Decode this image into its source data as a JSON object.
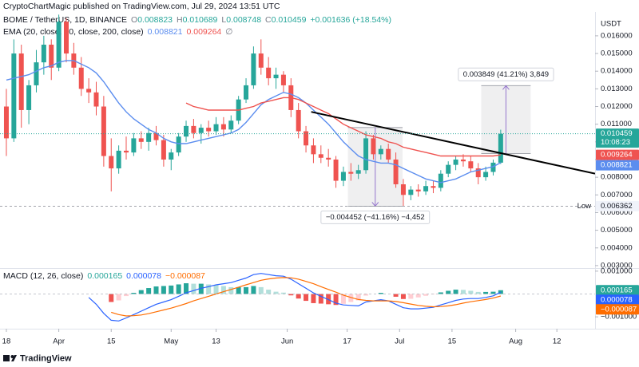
{
  "header": {
    "publisher": "CryptoChartMagic published on TradingView.com, Jul 29, 2024 13:51 UTC"
  },
  "footer": {
    "brand": "TradingView"
  },
  "chart_data": [
    {
      "type": "candlestick",
      "title": "BOME / TetherUS, 1D, BINANCE",
      "ohlc_labels": [
        "O",
        "H",
        "L",
        "C"
      ],
      "change": "+0.001636 (+18.54%)",
      "indicator": "EMA (20, close, 50, close, 200, close)",
      "indicator_missing": "∅",
      "currency": "USDT",
      "countdown": "10:08:23",
      "low_label": "Low",
      "up_color": "#26a69a",
      "down_color": "#ef5350",
      "open": [
        0.012,
        0.0102,
        0.015,
        0.0118,
        0.0132,
        0.0145,
        0.0155,
        0.0142,
        0.0168,
        0.015,
        0.0142,
        0.013,
        0.0128,
        0.012,
        0.0092,
        0.0085,
        0.0095,
        0.0094,
        0.0102,
        0.01,
        0.0105,
        0.0101,
        0.009,
        0.0094,
        0.0103,
        0.0109,
        0.0105,
        0.0108,
        0.0106,
        0.011,
        0.0107,
        0.0112,
        0.0124,
        0.0132,
        0.015,
        0.0142,
        0.0136,
        0.0138,
        0.0132,
        0.0118,
        0.0106,
        0.0098,
        0.0093,
        0.0091,
        0.009,
        0.0078,
        0.0083,
        0.0082,
        0.0084,
        0.0102,
        0.0093,
        0.0096,
        0.009,
        0.0076,
        0.007,
        0.0073,
        0.0072,
        0.0075,
        0.0074,
        0.0082,
        0.0087,
        0.009,
        0.0089,
        0.0085,
        0.008,
        0.0083,
        0.008823
      ],
      "high": [
        0.013,
        0.0158,
        0.0155,
        0.0135,
        0.0152,
        0.016,
        0.0158,
        0.0172,
        0.017,
        0.0156,
        0.0148,
        0.0136,
        0.0134,
        0.0126,
        0.0102,
        0.0098,
        0.0103,
        0.0105,
        0.0106,
        0.0108,
        0.0109,
        0.0104,
        0.0096,
        0.0105,
        0.0112,
        0.0113,
        0.011,
        0.0112,
        0.0114,
        0.0114,
        0.0115,
        0.0126,
        0.0136,
        0.0154,
        0.0158,
        0.0148,
        0.0142,
        0.014,
        0.0136,
        0.0122,
        0.0109,
        0.0102,
        0.0098,
        0.0096,
        0.0092,
        0.0086,
        0.0088,
        0.0087,
        0.0106,
        0.0104,
        0.0098,
        0.0099,
        0.0094,
        0.0079,
        0.0075,
        0.0076,
        0.0078,
        0.0078,
        0.0084,
        0.0089,
        0.0092,
        0.0093,
        0.0092,
        0.0088,
        0.0086,
        0.009,
        0.010689
      ],
      "low": [
        0.0092,
        0.01,
        0.0108,
        0.011,
        0.0128,
        0.0138,
        0.0135,
        0.014,
        0.0145,
        0.0138,
        0.0126,
        0.0122,
        0.0115,
        0.0086,
        0.0072,
        0.0082,
        0.009,
        0.0092,
        0.0096,
        0.0095,
        0.0098,
        0.0086,
        0.0084,
        0.0092,
        0.01,
        0.0102,
        0.0099,
        0.0103,
        0.0104,
        0.0103,
        0.0105,
        0.011,
        0.0122,
        0.013,
        0.0138,
        0.0132,
        0.013,
        0.0128,
        0.0114,
        0.0102,
        0.0094,
        0.0088,
        0.0088,
        0.0086,
        0.0074,
        0.0075,
        0.0078,
        0.0079,
        0.0082,
        0.009,
        0.009,
        0.0088,
        0.0074,
        0.006362,
        0.0067,
        0.0069,
        0.007,
        0.0071,
        0.0072,
        0.008,
        0.0084,
        0.0086,
        0.0083,
        0.0076,
        0.0078,
        0.0081,
        0.008748
      ],
      "close": [
        0.0102,
        0.015,
        0.0118,
        0.0132,
        0.0145,
        0.0155,
        0.0142,
        0.0168,
        0.015,
        0.0142,
        0.013,
        0.0128,
        0.012,
        0.0092,
        0.0085,
        0.0095,
        0.0094,
        0.0102,
        0.01,
        0.0105,
        0.0101,
        0.009,
        0.0094,
        0.0103,
        0.0109,
        0.0105,
        0.0108,
        0.0106,
        0.011,
        0.0107,
        0.0112,
        0.0124,
        0.0132,
        0.015,
        0.0142,
        0.0136,
        0.0138,
        0.0132,
        0.0118,
        0.0106,
        0.0098,
        0.0093,
        0.0091,
        0.009,
        0.0078,
        0.0083,
        0.0082,
        0.0084,
        0.0102,
        0.0093,
        0.0096,
        0.009,
        0.0076,
        0.007,
        0.0073,
        0.0072,
        0.0075,
        0.0074,
        0.0082,
        0.0087,
        0.009,
        0.0089,
        0.0085,
        0.008,
        0.0083,
        0.008823,
        0.010459
      ],
      "series": [
        {
          "color": "#5b8def",
          "values": [
            0.0135,
            0.0136,
            0.0137,
            0.0138,
            0.014,
            0.0142,
            0.0143,
            0.0145,
            0.0146,
            0.0146,
            0.0144,
            0.0142,
            0.0139,
            0.0134,
            0.0128,
            0.0122,
            0.0117,
            0.0113,
            0.011,
            0.0107,
            0.0105,
            0.0102,
            0.01,
            0.0099,
            0.0099,
            0.01,
            0.0101,
            0.0102,
            0.0103,
            0.0104,
            0.0105,
            0.0107,
            0.0111,
            0.0116,
            0.0121,
            0.0124,
            0.0126,
            0.0128,
            0.0127,
            0.0125,
            0.0122,
            0.0118,
            0.0114,
            0.011,
            0.0105,
            0.01,
            0.0096,
            0.0092,
            0.009,
            0.0089,
            0.0088,
            0.0088,
            0.0087,
            0.0085,
            0.0083,
            0.0081,
            0.0079,
            0.0078,
            0.0077,
            0.0078,
            0.0079,
            0.0081,
            0.0083,
            0.0084,
            0.0085,
            0.0086,
            0.008821
          ]
        },
        {
          "color": "#ef5350",
          "values": [
            null,
            null,
            null,
            null,
            null,
            null,
            null,
            null,
            null,
            null,
            null,
            null,
            null,
            null,
            null,
            null,
            null,
            null,
            null,
            null,
            null,
            null,
            null,
            null,
            0.0122,
            0.012,
            0.0119,
            0.0118,
            0.0118,
            0.0118,
            0.0118,
            0.0118,
            0.0119,
            0.012,
            0.0122,
            0.0123,
            0.0124,
            0.0125,
            0.0125,
            0.0124,
            0.0122,
            0.012,
            0.0118,
            0.0116,
            0.0113,
            0.011,
            0.0108,
            0.0106,
            0.0104,
            0.0103,
            0.0102,
            0.01,
            0.0099,
            0.0097,
            0.0096,
            0.0095,
            0.0094,
            0.0093,
            0.0092,
            0.0092,
            0.0092,
            0.0092,
            0.0092,
            0.0092,
            0.0092,
            0.0092,
            0.009264
          ]
        }
      ],
      "trendline": {
        "x": [
          40.7,
          78.6
        ],
        "y": [
          0.0117,
          0.0082
        ],
        "color": "#000000"
      },
      "measures": [
        {
          "x": [
            45.6,
            52.9
          ],
          "y": [
            0.010814,
            0.006362
          ],
          "label": "−0.004452 (−41.16%) −4,452"
        },
        {
          "x": [
            63.4,
            70
          ],
          "y": [
            0.009334,
            0.013183
          ],
          "label": "0.003849 (41.21%) 3,849"
        }
      ],
      "xlim": [
        -0.85,
        78.6
      ],
      "xticks": [
        {
          "value": 0,
          "label": "18"
        },
        {
          "value": 7,
          "label": "Apr"
        },
        {
          "value": 14,
          "label": "15"
        },
        {
          "value": 22,
          "label": "May"
        },
        {
          "value": 28,
          "label": "13"
        },
        {
          "value": 37.5,
          "label": "Jun"
        },
        {
          "value": 45.5,
          "label": "17"
        },
        {
          "value": 52.5,
          "label": "Jul"
        },
        {
          "value": 59.5,
          "label": "15"
        },
        {
          "value": 68,
          "label": "Aug"
        },
        {
          "value": 73.5,
          "label": "12"
        }
      ],
      "ylim": [
        0.00286,
        0.01735
      ],
      "yticks": [
        {
          "value": 0.016,
          "label": "0.016000"
        },
        {
          "value": 0.015,
          "label": "0.015000"
        },
        {
          "value": 0.014,
          "label": "0.014000"
        },
        {
          "value": 0.013,
          "label": "0.013000"
        },
        {
          "value": 0.012,
          "label": "0.012000"
        },
        {
          "value": 0.011,
          "label": "0.011000"
        },
        {
          "value": 0.01,
          "label": "0.010000"
        },
        {
          "value": 0.009,
          "label": "0.009000"
        },
        {
          "value": 0.008,
          "label": "0.008000"
        },
        {
          "value": 0.007,
          "label": "0.007000"
        },
        {
          "value": 0.006,
          "label": "0.006000"
        },
        {
          "value": 0.005,
          "label": "0.005000"
        },
        {
          "value": 0.004,
          "label": "0.004000"
        },
        {
          "value": 0.003,
          "label": "0.003000"
        }
      ]
    },
    {
      "type": "macd",
      "title": "MACD (12, 26, close)",
      "histogram": [
        null,
        null,
        null,
        null,
        null,
        null,
        null,
        null,
        null,
        null,
        null,
        null,
        null,
        null,
        -0.00035,
        -0.00028,
        -9e-05,
        5e-05,
        0.00017,
        0.00026,
        0.00033,
        0.00035,
        0.00037,
        0.00042,
        0.00047,
        0.00045,
        0.00045,
        0.00042,
        0.0004,
        0.00035,
        0.0003,
        0.0003,
        0.0003,
        0.00035,
        0.0003,
        0.00019,
        0.0001,
        6e-05,
        -6e-05,
        -0.0002,
        -0.0003,
        -0.0004,
        -0.00042,
        -0.00045,
        -0.00048,
        -0.00043,
        -0.00035,
        -0.00028,
        -7e-05,
        0,
        5e-05,
        0,
        -0.00012,
        -0.00022,
        -0.00021,
        -0.00015,
        -8e-05,
        -2e-05,
        7e-05,
        0.00014,
        0.00019,
        0.00018,
        0.00014,
        9e-05,
        9e-05,
        0.0001,
        0.000165
      ],
      "histogram_colors": [
        "#26a69a",
        "#b2dfdb",
        "#ef5350",
        "#ffcdd2"
      ],
      "series": [
        {
          "color": "#2962ff",
          "values": [
            null,
            null,
            null,
            null,
            null,
            null,
            null,
            null,
            null,
            null,
            null,
            -0.00015,
            -0.00045,
            -0.00085,
            -0.00115,
            -0.00118,
            -0.00105,
            -0.0009,
            -0.00075,
            -0.0006,
            -0.00045,
            -0.00035,
            -0.00025,
            -0.0001,
            5e-05,
            0.00015,
            0.00025,
            0.00032,
            0.0004,
            0.00045,
            0.0005,
            0.0006,
            0.0007,
            0.00085,
            0.0009,
            0.00085,
            0.0008,
            0.00078,
            0.00065,
            0.00045,
            0.00025,
            5e-05,
            -0.0001,
            -0.00025,
            -0.0004,
            -0.00048,
            -0.0005,
            -0.00052,
            -0.00035,
            -0.0003,
            -0.00025,
            -0.0003,
            -0.00045,
            -0.0006,
            -0.00065,
            -0.00065,
            -0.00062,
            -0.00058,
            -0.00048,
            -0.00038,
            -0.00028,
            -0.00022,
            -0.0002,
            -0.0002,
            -0.00015,
            -8e-05,
            7.8e-05
          ]
        },
        {
          "color": "#ff6d00",
          "last_label": "−0.000087",
          "values": [
            null,
            null,
            null,
            null,
            null,
            null,
            null,
            null,
            null,
            null,
            null,
            null,
            null,
            null,
            -0.0008,
            -0.0009,
            -0.00096,
            -0.00095,
            -0.00092,
            -0.00086,
            -0.00078,
            -0.0007,
            -0.00062,
            -0.00052,
            -0.00042,
            -0.0003,
            -0.0002,
            -0.0001,
            0,
            0.0001,
            0.0002,
            0.0003,
            0.0004,
            0.0005,
            0.0006,
            0.00066,
            0.0007,
            0.00072,
            0.00071,
            0.00065,
            0.00055,
            0.00045,
            0.00032,
            0.0002,
            8e-05,
            -5e-05,
            -0.00015,
            -0.00024,
            -0.00028,
            -0.0003,
            -0.0003,
            -0.0003,
            -0.00033,
            -0.00038,
            -0.00044,
            -0.0005,
            -0.00054,
            -0.00056,
            -0.00055,
            -0.00052,
            -0.00047,
            -0.0004,
            -0.00034,
            -0.00029,
            -0.00024,
            -0.00018,
            -8.7e-05
          ]
        }
      ],
      "ylim": [
        -0.00152,
        0.0011
      ],
      "yticks": [
        {
          "value": 0.001,
          "label": "0.001000"
        },
        {
          "value": -0.001,
          "label": "−0.001000"
        }
      ]
    }
  ]
}
